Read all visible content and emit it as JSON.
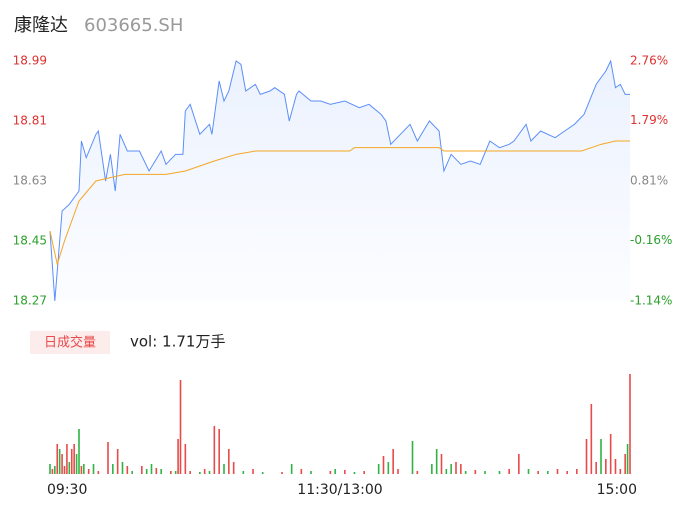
{
  "chart_data": [
    {
      "type": "line",
      "title": "康隆达",
      "subtitle": "603665.SH",
      "xlim": [
        0,
        240
      ],
      "ylim": [
        18.27,
        18.99
      ],
      "yticks": [
        18.27,
        18.45,
        18.63,
        18.81,
        18.99
      ],
      "ytick_colors": [
        "#2ca02c",
        "#2ca02c",
        "#888888",
        "#e03030",
        "#e03030"
      ],
      "y2lim": [
        -1.14,
        2.76
      ],
      "y2ticks": [
        {
          "value": -1.14,
          "label": "-1.14%"
        },
        {
          "value": -0.16,
          "label": "-0.16%"
        },
        {
          "value": 0.81,
          "label": "0.81%"
        },
        {
          "value": 1.79,
          "label": "1.79%"
        },
        {
          "value": 2.76,
          "label": "2.76%"
        }
      ],
      "y2tick_colors": [
        "#2ca02c",
        "#2ca02c",
        "#888888",
        "#e03030",
        "#e03030"
      ],
      "series": [
        {
          "name": "price",
          "color": "#5b8ff9",
          "x": [
            0,
            2,
            5,
            8,
            12,
            13,
            15,
            19,
            20,
            23,
            25,
            27,
            29,
            32,
            37,
            41,
            46,
            48,
            52,
            55,
            56,
            58,
            62,
            66,
            67,
            70,
            72,
            74,
            77,
            79,
            81,
            85,
            87,
            91,
            93,
            97,
            99,
            102,
            103,
            108,
            112,
            116,
            122,
            128,
            132,
            137,
            139,
            141,
            145,
            149,
            152,
            157,
            161,
            163,
            166,
            170,
            174,
            178,
            182,
            186,
            190,
            192,
            197,
            199,
            203,
            209,
            213,
            217,
            221,
            226,
            230,
            232,
            234,
            236,
            238,
            240
          ],
          "values": [
            18.48,
            18.27,
            18.54,
            18.56,
            18.6,
            18.75,
            18.7,
            18.77,
            18.78,
            18.63,
            18.71,
            18.6,
            18.77,
            18.72,
            18.72,
            18.66,
            18.72,
            18.68,
            18.71,
            18.71,
            18.84,
            18.86,
            18.77,
            18.8,
            18.77,
            18.93,
            18.87,
            18.9,
            18.99,
            18.98,
            18.9,
            18.92,
            18.89,
            18.9,
            18.91,
            18.89,
            18.81,
            18.89,
            18.9,
            18.87,
            18.87,
            18.86,
            18.87,
            18.85,
            18.86,
            18.83,
            18.81,
            18.74,
            18.77,
            18.8,
            18.75,
            18.81,
            18.78,
            18.66,
            18.71,
            18.68,
            18.69,
            18.68,
            18.75,
            18.73,
            18.74,
            18.75,
            18.8,
            18.75,
            18.78,
            18.76,
            18.78,
            18.8,
            18.83,
            18.92,
            18.96,
            18.99,
            18.91,
            18.92,
            18.89,
            18.89
          ]
        },
        {
          "name": "average",
          "color": "#f5a623",
          "x": [
            0,
            3,
            6,
            12,
            19,
            25,
            31,
            48,
            56,
            68,
            77,
            85,
            124,
            126,
            161,
            163,
            220,
            228,
            234,
            240
          ],
          "values": [
            18.48,
            18.38,
            18.45,
            18.57,
            18.63,
            18.64,
            18.65,
            18.65,
            18.66,
            18.69,
            18.71,
            18.72,
            18.72,
            18.73,
            18.73,
            18.72,
            18.72,
            18.74,
            18.75,
            18.75
          ]
        }
      ]
    },
    {
      "type": "bar",
      "legend": "日成交量",
      "volume_label": "vol: 1.71万手",
      "xlim": [
        0,
        240
      ],
      "ylim": [
        0,
        102
      ],
      "xticks": [
        {
          "value": 0,
          "label": "09:30"
        },
        {
          "value": 120,
          "label": "11:30/13:00"
        },
        {
          "value": 240,
          "label": "15:00"
        }
      ],
      "x": [
        0,
        1,
        2,
        3,
        4,
        5,
        6,
        7,
        8,
        9,
        10,
        11,
        12,
        13,
        14,
        16,
        18,
        20,
        24,
        26,
        28,
        30,
        32,
        34,
        38,
        40,
        42,
        44,
        46,
        50,
        52,
        53,
        54,
        56,
        58,
        62,
        64,
        66,
        68,
        70,
        72,
        74,
        76,
        80,
        84,
        88,
        96,
        100,
        104,
        108,
        116,
        118,
        122,
        126,
        130,
        136,
        138,
        140,
        142,
        144,
        150,
        152,
        158,
        160,
        162,
        164,
        166,
        168,
        170,
        172,
        176,
        180,
        186,
        190,
        194,
        198,
        202,
        206,
        210,
        214,
        218,
        222,
        224,
        226,
        228,
        230,
        232,
        234,
        236,
        238,
        239,
        240
      ],
      "values": [
        10,
        5,
        8,
        30,
        25,
        20,
        8,
        30,
        12,
        25,
        30,
        20,
        45,
        8,
        10,
        5,
        10,
        3,
        32,
        10,
        25,
        12,
        8,
        3,
        8,
        5,
        10,
        6,
        5,
        3,
        3,
        35,
        94,
        30,
        3,
        2,
        5,
        3,
        48,
        45,
        10,
        25,
        12,
        3,
        5,
        2,
        2,
        10,
        5,
        3,
        3,
        5,
        4,
        2,
        3,
        10,
        18,
        12,
        25,
        5,
        33,
        3,
        10,
        25,
        20,
        5,
        10,
        12,
        10,
        3,
        4,
        3,
        3,
        5,
        20,
        5,
        3,
        3,
        5,
        3,
        5,
        35,
        70,
        12,
        35,
        15,
        40,
        15,
        5,
        20,
        30,
        100
      ],
      "colors": [
        "#2fb344",
        "#e84a4a",
        "#2fb344",
        "#e84a4a",
        "#2fb344",
        "#e84a4a",
        "#e84a4a",
        "#e84a4a",
        "#2fb344",
        "#e84a4a",
        "#e84a4a",
        "#2fb344",
        "#2fb344",
        "#e84a4a",
        "#2fb344",
        "#e84a4a",
        "#2fb344",
        "#e84a4a",
        "#e84a4a",
        "#2fb344",
        "#e84a4a",
        "#2fb344",
        "#e84a4a",
        "#2fb344",
        "#e84a4a",
        "#2fb344",
        "#2fb344",
        "#e84a4a",
        "#2fb344",
        "#e84a4a",
        "#2fb344",
        "#e84a4a",
        "#e84a4a",
        "#e84a4a",
        "#e84a4a",
        "#2fb344",
        "#e84a4a",
        "#2fb344",
        "#e84a4a",
        "#e84a4a",
        "#2fb344",
        "#e84a4a",
        "#e84a4a",
        "#2fb344",
        "#e84a4a",
        "#2fb344",
        "#e84a4a",
        "#2fb344",
        "#e84a4a",
        "#2fb344",
        "#e84a4a",
        "#2fb344",
        "#e84a4a",
        "#2fb344",
        "#e84a4a",
        "#2fb344",
        "#e84a4a",
        "#2fb344",
        "#e84a4a",
        "#e84a4a",
        "#2fb344",
        "#e84a4a",
        "#2fb344",
        "#2fb344",
        "#e84a4a",
        "#2fb344",
        "#2fb344",
        "#e84a4a",
        "#e84a4a",
        "#2fb344",
        "#e84a4a",
        "#2fb344",
        "#2fb344",
        "#e84a4a",
        "#e84a4a",
        "#2fb344",
        "#e84a4a",
        "#2fb344",
        "#e84a4a",
        "#e84a4a",
        "#e84a4a",
        "#e84a4a",
        "#e84a4a",
        "#e84a4a",
        "#2fb344",
        "#e84a4a",
        "#e84a4a",
        "#e84a4a",
        "#e84a4a",
        "#e84a4a",
        "#2fb344",
        "#e84a4a"
      ]
    }
  ]
}
